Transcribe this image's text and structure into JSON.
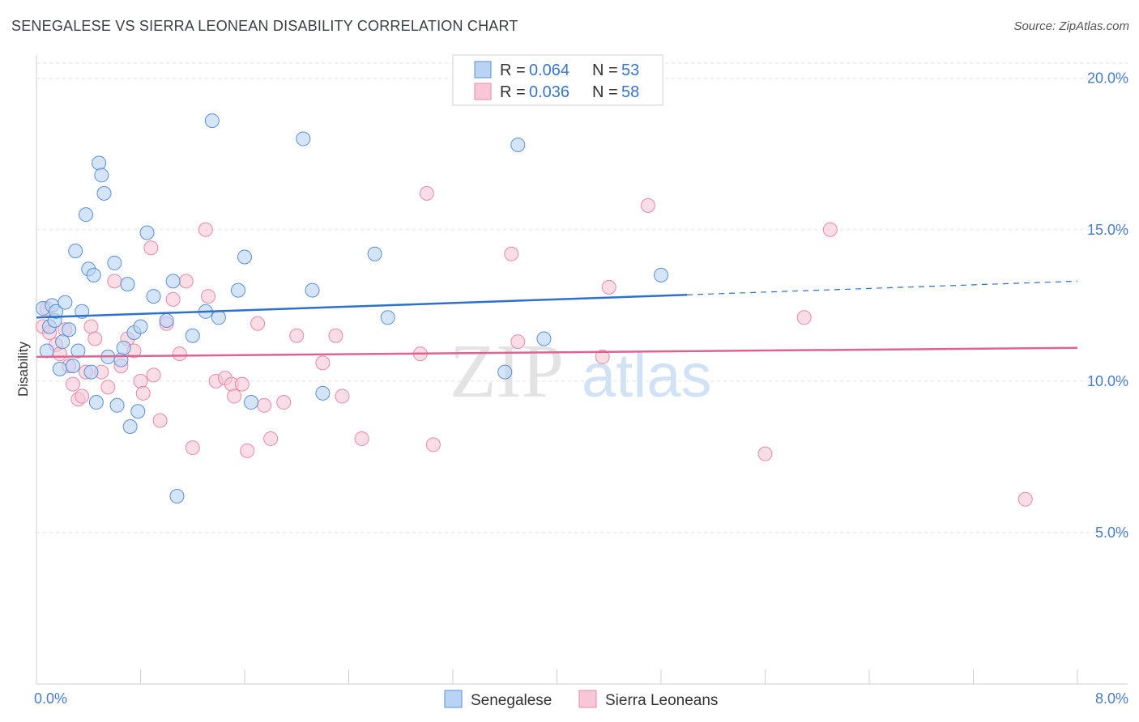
{
  "header": {
    "title": "SENEGALESE VS SIERRA LEONEAN DISABILITY CORRELATION CHART",
    "source": "Source: ZipAtlas.com"
  },
  "watermark": {
    "zip": "ZIP",
    "atlas": "atlas"
  },
  "legend": {
    "rows": [
      {
        "r_label": "R = ",
        "r_value": "0.064",
        "n_label": "N = ",
        "n_value": "53"
      },
      {
        "r_label": "R = ",
        "r_value": "0.036",
        "n_label": "N = ",
        "n_value": "58"
      }
    ]
  },
  "chart_data": {
    "type": "scatter",
    "title": "SENEGALESE VS SIERRA LEONEAN DISABILITY CORRELATION CHART",
    "xlabel": "",
    "ylabel": "Disability",
    "xlim": [
      0,
      8
    ],
    "ylim": [
      0,
      20.5
    ],
    "x_tick_labels": [
      "0.0%",
      "8.0%"
    ],
    "y_ticks": [
      5,
      10,
      15,
      20
    ],
    "y_tick_labels": [
      "5.0%",
      "10.0%",
      "15.0%",
      "20.0%"
    ],
    "grid": true,
    "legend_position": "top-center",
    "colors": {
      "senegalese_fill": "#b9d3f5",
      "senegalese_stroke": "#5b8fd6",
      "senegalese_line": "#2f6fcf",
      "sierra_fill": "#f8c6d6",
      "sierra_stroke": "#e58aa9",
      "sierra_line": "#e0638f"
    },
    "series": [
      {
        "name": "Senegalese",
        "trend": {
          "x0": 0,
          "y0": 12.1,
          "x_solid_end": 5.0,
          "x1": 8,
          "y1": 13.3
        },
        "points": [
          [
            0.05,
            12.4
          ],
          [
            0.08,
            11.0
          ],
          [
            0.1,
            11.8
          ],
          [
            0.12,
            12.5
          ],
          [
            0.14,
            12.0
          ],
          [
            0.15,
            12.3
          ],
          [
            0.18,
            10.4
          ],
          [
            0.2,
            11.3
          ],
          [
            0.22,
            12.6
          ],
          [
            0.25,
            11.7
          ],
          [
            0.28,
            10.5
          ],
          [
            0.3,
            14.3
          ],
          [
            0.32,
            11.0
          ],
          [
            0.35,
            12.3
          ],
          [
            0.38,
            15.5
          ],
          [
            0.4,
            13.7
          ],
          [
            0.42,
            10.3
          ],
          [
            0.44,
            13.5
          ],
          [
            0.46,
            9.3
          ],
          [
            0.48,
            17.2
          ],
          [
            0.5,
            16.8
          ],
          [
            0.52,
            16.2
          ],
          [
            0.55,
            10.8
          ],
          [
            0.6,
            13.9
          ],
          [
            0.62,
            9.2
          ],
          [
            0.65,
            10.7
          ],
          [
            0.67,
            11.1
          ],
          [
            0.7,
            13.2
          ],
          [
            0.72,
            8.5
          ],
          [
            0.75,
            11.6
          ],
          [
            0.78,
            9.0
          ],
          [
            0.8,
            11.8
          ],
          [
            0.85,
            14.9
          ],
          [
            1.0,
            12.0
          ],
          [
            1.05,
            13.3
          ],
          [
            1.08,
            6.2
          ],
          [
            1.2,
            11.5
          ],
          [
            1.3,
            12.3
          ],
          [
            1.35,
            18.6
          ],
          [
            1.4,
            12.1
          ],
          [
            1.55,
            13.0
          ],
          [
            1.6,
            14.1
          ],
          [
            1.65,
            9.3
          ],
          [
            2.12,
            13.0
          ],
          [
            2.2,
            9.6
          ],
          [
            2.6,
            14.2
          ],
          [
            2.7,
            12.1
          ],
          [
            3.6,
            10.3
          ],
          [
            3.7,
            17.8
          ],
          [
            3.9,
            11.4
          ],
          [
            4.8,
            13.5
          ],
          [
            2.05,
            18.0
          ],
          [
            0.9,
            12.8
          ]
        ]
      },
      {
        "name": "Sierra Leoneans",
        "trend": {
          "x0": 0,
          "y0": 10.8,
          "x1": 8,
          "y1": 11.1
        },
        "points": [
          [
            0.05,
            11.8
          ],
          [
            0.08,
            12.4
          ],
          [
            0.1,
            11.6
          ],
          [
            0.15,
            11.2
          ],
          [
            0.18,
            10.9
          ],
          [
            0.22,
            11.7
          ],
          [
            0.25,
            10.5
          ],
          [
            0.28,
            9.9
          ],
          [
            0.32,
            9.4
          ],
          [
            0.35,
            9.5
          ],
          [
            0.38,
            10.3
          ],
          [
            0.42,
            11.8
          ],
          [
            0.45,
            11.4
          ],
          [
            0.5,
            10.3
          ],
          [
            0.55,
            9.8
          ],
          [
            0.6,
            13.3
          ],
          [
            0.65,
            10.5
          ],
          [
            0.7,
            11.4
          ],
          [
            0.75,
            11.0
          ],
          [
            0.8,
            10.0
          ],
          [
            0.82,
            9.6
          ],
          [
            0.88,
            14.4
          ],
          [
            0.9,
            10.2
          ],
          [
            0.95,
            8.7
          ],
          [
            1.0,
            11.9
          ],
          [
            1.05,
            12.7
          ],
          [
            1.1,
            10.9
          ],
          [
            1.15,
            13.3
          ],
          [
            1.2,
            7.8
          ],
          [
            1.3,
            15.0
          ],
          [
            1.32,
            12.8
          ],
          [
            1.38,
            10.0
          ],
          [
            1.45,
            10.1
          ],
          [
            1.5,
            9.9
          ],
          [
            1.52,
            9.5
          ],
          [
            1.58,
            9.9
          ],
          [
            1.62,
            7.7
          ],
          [
            1.7,
            11.9
          ],
          [
            1.75,
            9.2
          ],
          [
            1.8,
            8.1
          ],
          [
            1.9,
            9.3
          ],
          [
            2.0,
            11.5
          ],
          [
            2.2,
            10.6
          ],
          [
            2.3,
            11.5
          ],
          [
            2.35,
            9.5
          ],
          [
            2.5,
            8.1
          ],
          [
            2.95,
            10.9
          ],
          [
            3.0,
            16.2
          ],
          [
            3.05,
            7.9
          ],
          [
            3.65,
            14.2
          ],
          [
            3.7,
            11.3
          ],
          [
            4.35,
            10.8
          ],
          [
            4.4,
            13.1
          ],
          [
            4.7,
            15.8
          ],
          [
            5.6,
            7.6
          ],
          [
            5.9,
            12.1
          ],
          [
            6.1,
            15.0
          ],
          [
            7.6,
            6.1
          ]
        ]
      }
    ]
  }
}
